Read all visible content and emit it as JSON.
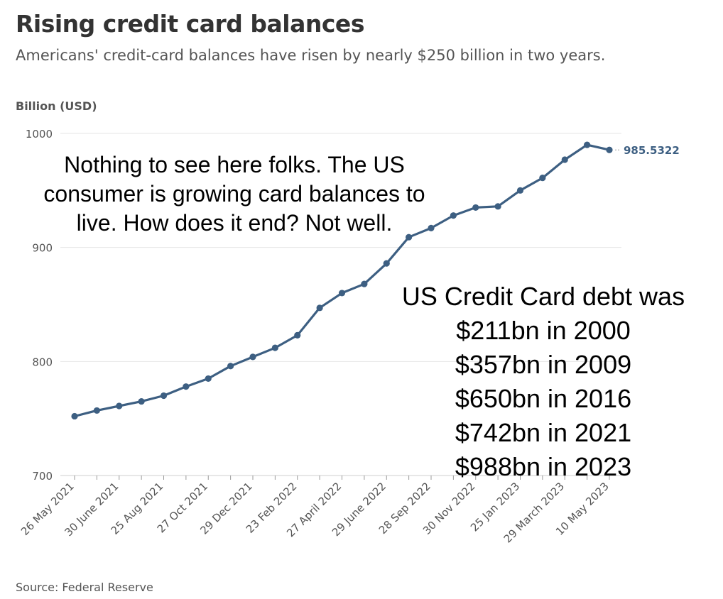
{
  "title": "Rising credit card balances",
  "subtitle": "Americans' credit-card balances have risen by nearly $250 billion in two years.",
  "source": "Source: Federal Reserve",
  "colors": {
    "line": "#3d5f82",
    "grid": "#e6e6e6",
    "axis_text": "#555555"
  },
  "annotations": {
    "comment": "Nothing to see here folks. The US consumer is growing card balances to live. How does it end?  Not well.",
    "debt_history": [
      "US Credit Card debt was",
      "$211bn in 2000",
      "$357bn in 2009",
      "$650bn in 2016",
      "$742bn in 2021",
      "$988bn in 2023"
    ]
  },
  "chart_data": {
    "type": "line",
    "title": "Rising credit card balances",
    "subtitle": "Americans' credit-card balances have risen by nearly $250 billion in two years.",
    "ylabel": "Billion (USD)",
    "xlabel": "",
    "ylim": [
      700,
      1000
    ],
    "yticks": [
      700,
      800,
      900,
      1000
    ],
    "grid": true,
    "xtick_labels": [
      "26 May 2021",
      "30 June 2021",
      "25 Aug 2021",
      "27 Oct 2021",
      "29 Dec 2021",
      "23 Feb 2022",
      "27 April 2022",
      "29 June 2022",
      "28 Sep 2022",
      "30 Nov 2022",
      "25 Jan 2023",
      "29 March 2023",
      "10 May 2023"
    ],
    "xtick_positions": [
      0,
      2,
      4,
      6,
      8,
      10,
      12,
      14,
      16,
      18,
      20,
      22,
      24
    ],
    "values": [
      752,
      757,
      761,
      765,
      770,
      778,
      785,
      796,
      804,
      812,
      823,
      847,
      860,
      868,
      886,
      909,
      917,
      928,
      935,
      936,
      950,
      961,
      977,
      990,
      985.5322
    ],
    "last_label": "985.5322"
  }
}
